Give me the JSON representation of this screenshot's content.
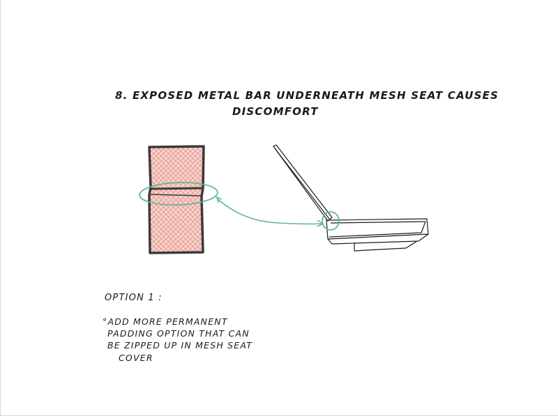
{
  "title": {
    "line1": "8. EXPOSED METAL BAR UNDERNEATH MESH SEAT CAUSES",
    "line2": "DISCOMFORT"
  },
  "option": {
    "heading": "OPTION 1 :",
    "note_lines": [
      "°ADD MORE PERMANENT",
      "PADDING OPTION THAT CAN",
      "BE ZIPPED UP IN MESH SEAT",
      "COVER"
    ]
  },
  "colors": {
    "mesh_fill": "#f4c4bd",
    "mesh_hatch": "#e07a70",
    "frame_outline": "#3a3a3a",
    "highlight": "#5fb88f",
    "ink": "#1a1a1a"
  }
}
